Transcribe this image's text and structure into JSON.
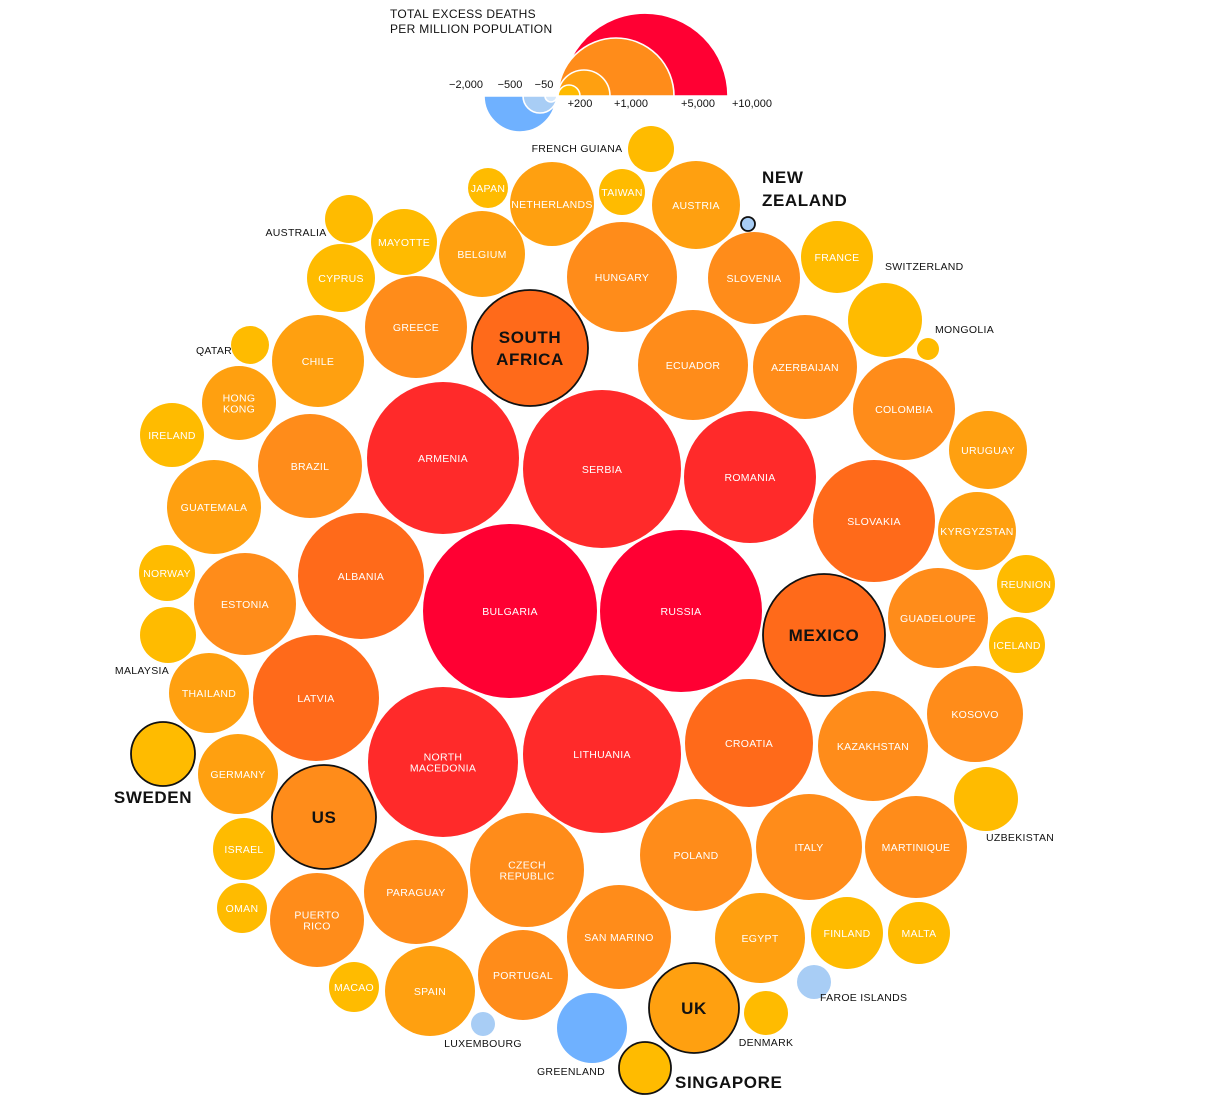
{
  "chart_data": {
    "type": "bubble",
    "legend": {
      "title_lines": [
        "TOTAL EXCESS DEATHS",
        "PER MILLION POPULATION"
      ],
      "negative_ticks": [
        "−2,000",
        "−500",
        "−50"
      ],
      "positive_ticks": [
        "+200",
        "+1,000",
        "+5,000",
        "+10,000"
      ],
      "negative_values": [
        -2000,
        -500,
        -50
      ],
      "positive_values": [
        200,
        1000,
        5000,
        10000
      ]
    },
    "colors": {
      "very_high": "#ff0033",
      "high": "#ff2a2a",
      "upper": "#ff6a1a",
      "mid": "#ff8c1a",
      "lower": "#ffa010",
      "low": "#ffbb00",
      "negative": "#6fb1ff",
      "negative_light": "#a8cdf5",
      "highlight_outline": "#111111"
    },
    "countries": [
      {
        "name": "BULGARIA",
        "value": 9000,
        "label": "in"
      },
      {
        "name": "RUSSIA",
        "value": 7800,
        "label": "in"
      },
      {
        "name": "SERBIA",
        "value": 6800,
        "label": "in"
      },
      {
        "name": "LITHUANIA",
        "value": 6700,
        "label": "in"
      },
      {
        "name": "NORTH MACEDONIA",
        "lines": [
          "NORTH",
          "MACEDONIA"
        ],
        "value": 6500,
        "label": "in"
      },
      {
        "name": "ARMENIA",
        "value": 6300,
        "label": "in"
      },
      {
        "name": "ROMANIA",
        "value": 5200,
        "label": "in"
      },
      {
        "name": "CROATIA",
        "value": 4600,
        "label": "in"
      },
      {
        "name": "ALBANIA",
        "value": 4400,
        "label": "in"
      },
      {
        "name": "LATVIA",
        "value": 4400,
        "label": "in"
      },
      {
        "name": "SLOVAKIA",
        "value": 4100,
        "label": "in"
      },
      {
        "name": "MEXICO",
        "value": 4200,
        "label": "big",
        "highlight": true
      },
      {
        "name": "SOUTH AFRICA",
        "lines": [
          "SOUTH",
          "AFRICA"
        ],
        "value": 3800,
        "label": "big",
        "highlight": true
      },
      {
        "name": "CZECH REPUBLIC",
        "lines": [
          "CZECH",
          "REPUBLIC"
        ],
        "value": 3400,
        "label": "in"
      },
      {
        "name": "HUNGARY",
        "value": 3300,
        "label": "in"
      },
      {
        "name": "KAZAKHSTAN",
        "value": 3300,
        "label": "in"
      },
      {
        "name": "ECUADOR",
        "value": 3300,
        "label": "in"
      },
      {
        "name": "POLAND",
        "value": 3400,
        "label": "in"
      },
      {
        "name": "ITALY",
        "value": 3000,
        "label": "in"
      },
      {
        "name": "MARTINIQUE",
        "value": 2900,
        "label": "in"
      },
      {
        "name": "COLOMBIA",
        "value": 2800,
        "label": "in"
      },
      {
        "name": "AZERBAIJAN",
        "value": 2900,
        "label": "in"
      },
      {
        "name": "GUADELOUPE",
        "value": 2700,
        "label": "in"
      },
      {
        "name": "PARAGUAY",
        "value": 2900,
        "label": "in"
      },
      {
        "name": "US",
        "value": 2900,
        "label": "big",
        "highlight": true
      },
      {
        "name": "SAN MARINO",
        "value": 2900,
        "label": "in"
      },
      {
        "name": "BRAZIL",
        "value": 2700,
        "label": "in"
      },
      {
        "name": "GREECE",
        "value": 2800,
        "label": "in"
      },
      {
        "name": "ESTONIA",
        "value": 2700,
        "label": "in"
      },
      {
        "name": "PUERTO RICO",
        "lines": [
          "PUERTO",
          "RICO"
        ],
        "value": 2300,
        "label": "in"
      },
      {
        "name": "SPAIN",
        "value": 2200,
        "label": "in"
      },
      {
        "name": "PORTUGAL",
        "value": 2300,
        "label": "in"
      },
      {
        "name": "SLOVENIA",
        "value": 2300,
        "label": "in"
      },
      {
        "name": "KOSOVO",
        "value": 2500,
        "label": "in"
      },
      {
        "name": "CHILE",
        "value": 2000,
        "label": "in"
      },
      {
        "name": "GUATEMALA",
        "value": 2000,
        "label": "in"
      },
      {
        "name": "EGYPT",
        "value": 2200,
        "label": "in"
      },
      {
        "name": "UK",
        "value": 2100,
        "label": "big",
        "highlight": true
      },
      {
        "name": "BELGIUM",
        "value": 1800,
        "label": "in"
      },
      {
        "name": "NETHERLANDS",
        "value": 1800,
        "label": "in"
      },
      {
        "name": "AUSTRIA",
        "value": 1700,
        "label": "in"
      },
      {
        "name": "THAILAND",
        "value": 1500,
        "label": "in"
      },
      {
        "name": "GERMANY",
        "value": 1500,
        "label": "in"
      },
      {
        "name": "FRANCE",
        "value": 1300,
        "label": "in"
      },
      {
        "name": "HONG KONG",
        "lines": [
          "HONG",
          "KONG"
        ],
        "value": 1400,
        "label": "in"
      },
      {
        "name": "URUGUAY",
        "value": 1400,
        "label": "in"
      },
      {
        "name": "KYRGYZSTAN",
        "value": 1400,
        "label": "in"
      },
      {
        "name": "FINLAND",
        "value": 1300,
        "label": "in"
      },
      {
        "name": "SWITZERLAND",
        "value": 1200,
        "label": "out"
      },
      {
        "name": "CYPRUS",
        "value": 1100,
        "label": "in"
      },
      {
        "name": "MAYOTTE",
        "value": 1000,
        "label": "in"
      },
      {
        "name": "IRELAND",
        "value": 960,
        "label": "in"
      },
      {
        "name": "UZBEKISTAN",
        "value": 1000,
        "label": "out"
      },
      {
        "name": "MALTA",
        "value": 900,
        "label": "in"
      },
      {
        "name": "SWEDEN",
        "value": 1020,
        "label": "big",
        "highlight": true
      },
      {
        "name": "ISRAEL",
        "value": 890,
        "label": "in"
      },
      {
        "name": "REUNION",
        "value": 840,
        "label": "in"
      },
      {
        "name": "ICELAND",
        "value": 750,
        "label": "in"
      },
      {
        "name": "NORWAY",
        "value": 780,
        "label": "in"
      },
      {
        "name": "MALAYSIA",
        "value": 750,
        "label": "out"
      },
      {
        "name": "OMAN",
        "value": 610,
        "label": "in"
      },
      {
        "name": "AUSTRALIA",
        "value": 600,
        "label": "out"
      },
      {
        "name": "TAIWAN",
        "value": 560,
        "label": "in"
      },
      {
        "name": "FRENCH GUIANA",
        "value": 550,
        "label": "out"
      },
      {
        "name": "MACAO",
        "value": 520,
        "label": "in"
      },
      {
        "name": "DENMARK",
        "value": 480,
        "label": "out"
      },
      {
        "name": "SINGAPORE",
        "value": 670,
        "label": "big",
        "highlight": true
      },
      {
        "name": "JAPAN",
        "value": 390,
        "label": "in"
      },
      {
        "name": "QATAR",
        "value": 370,
        "label": "out"
      },
      {
        "name": "MONGOLIA",
        "value": 120,
        "label": "out"
      },
      {
        "name": "GREENLAND",
        "value": -1300,
        "label": "out"
      },
      {
        "name": "FAROE ISLANDS",
        "value": -250,
        "label": "out"
      },
      {
        "name": "LUXEMBOURG",
        "value": -140,
        "label": "out"
      },
      {
        "name": "NEW ZEALAND",
        "lines": [
          "NEW",
          "ZEALAND"
        ],
        "value": -40,
        "label": "big",
        "highlight": true
      }
    ]
  }
}
